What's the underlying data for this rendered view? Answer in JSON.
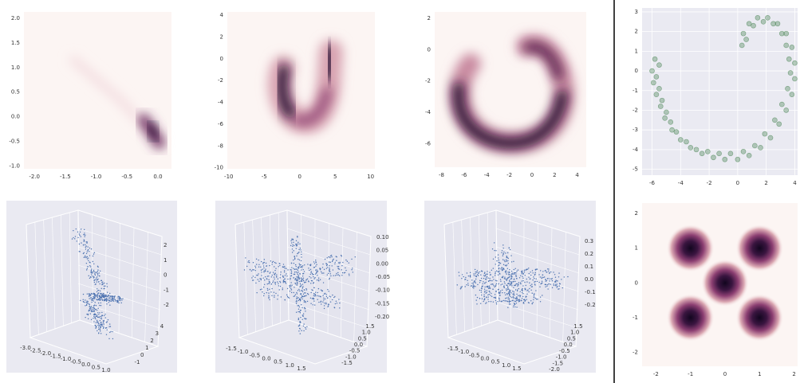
{
  "chart_data": [
    {
      "type": "density",
      "xlim": [
        -2.17,
        0.22
      ],
      "ylim": [
        -1.06,
        2.13
      ],
      "xticks": [
        {
          "value": -2,
          "label": "-2.0"
        },
        -1.5,
        {
          "value": -1,
          "label": "-1.0"
        },
        -0.5,
        {
          "value": 0,
          "label": "0.0"
        }
      ],
      "yticks": [
        {
          "value": -1,
          "label": "-1.0"
        },
        -0.5,
        {
          "value": 0,
          "label": "0.0"
        },
        0.5,
        {
          "value": 1,
          "label": "1.0"
        },
        1.5,
        {
          "value": 2,
          "label": "2.0"
        }
      ]
    },
    {
      "type": "density",
      "xlim": [
        -10.2,
        10.6
      ],
      "ylim": [
        -10.1,
        4.3
      ],
      "xticks": [
        -10,
        -5,
        0,
        5,
        10
      ],
      "yticks": [
        -10,
        -8,
        -6,
        -4,
        -2,
        0,
        2,
        4
      ]
    },
    {
      "type": "density",
      "xlim": [
        -8.6,
        4.8
      ],
      "ylim": [
        -7.5,
        2.4
      ],
      "xticks": [
        -8,
        -6,
        -4,
        -2,
        0,
        2,
        4
      ],
      "yticks": [
        -6,
        -4,
        -2,
        0,
        2
      ]
    },
    {
      "type": "scatter",
      "xlim": [
        -6.7,
        4.2
      ],
      "ylim": [
        -5.3,
        3.2
      ],
      "grid": true,
      "color": "#3f7d4a",
      "xticks": [
        -6,
        -4,
        -2,
        0,
        2,
        4
      ],
      "yticks": [
        -5,
        -4,
        -3,
        -2,
        -1,
        0,
        1,
        2,
        3
      ],
      "x": [
        -5.8,
        -6,
        -5.9,
        -5.7,
        -5.4,
        -5.1,
        -4.6,
        -4,
        -3.3,
        -2.5,
        -1.7,
        -0.9,
        0,
        0.8,
        1.6,
        2.3,
        2.9,
        3.4,
        3.8,
        4,
        4,
        3.8,
        3.4,
        2.8,
        2.1,
        1.4,
        0.8,
        0.4,
        0.3,
        -5.5,
        -5.7,
        -5.5,
        -5.3,
        -5,
        -4.7,
        -4.3,
        -3.6,
        -2.9,
        -2.1,
        -1.3,
        -0.5,
        0.4,
        1.2,
        1.9,
        2.6,
        3.1,
        3.5,
        3.7,
        3.6,
        3.4,
        3.1,
        2.5,
        1.8,
        1.1,
        0.6
      ],
      "values": [
        0.6,
        0,
        -0.6,
        -1.2,
        -1.8,
        -2.4,
        -3,
        -3.5,
        -3.9,
        -4.2,
        -4.4,
        -4.5,
        -4.5,
        -4.3,
        -3.9,
        -3.4,
        -2.7,
        -2,
        -1.2,
        -0.4,
        0.4,
        1.2,
        1.9,
        2.4,
        2.7,
        2.7,
        2.4,
        1.9,
        1.3,
        0.3,
        -0.3,
        -0.9,
        -1.5,
        -2.1,
        -2.6,
        -3.1,
        -3.6,
        -4,
        -4.1,
        -4.2,
        -4.2,
        -4.1,
        -3.8,
        -3.2,
        -2.5,
        -1.7,
        -0.9,
        -0.1,
        0.6,
        1.3,
        1.9,
        2.4,
        2.5,
        2.3,
        1.6
      ]
    },
    {
      "type": "scatter3d",
      "xticks": [
        {
          "value": -3,
          "label": "-3.0"
        },
        -2.5,
        {
          "value": -2,
          "label": "-2.0"
        },
        -1.5,
        {
          "value": -1,
          "label": "-1.0"
        },
        -0.5,
        {
          "value": 0,
          "label": "0.0"
        },
        0.5,
        {
          "value": 1,
          "label": "1.0"
        }
      ],
      "yticks": [
        -1,
        0,
        1,
        2,
        3,
        4
      ],
      "zticks": [
        -2,
        -1,
        0,
        1,
        2
      ]
    },
    {
      "type": "scatter3d",
      "xticks": [
        -1.5,
        {
          "value": -1,
          "label": "-1.0"
        },
        -0.5,
        {
          "value": 0,
          "label": "0.0"
        },
        0.5,
        {
          "value": 1,
          "label": "1.0"
        },
        1.5
      ],
      "yticks": [
        -1.5,
        {
          "value": -1,
          "label": "-1.0"
        },
        -0.5,
        {
          "value": 0,
          "label": "0.0"
        },
        0.5,
        {
          "value": 1,
          "label": "1.0"
        },
        1.5
      ],
      "zticks": [
        {
          "value": -0.2,
          "label": "-0.20"
        },
        -0.15,
        {
          "value": -0.1,
          "label": "-0.10"
        },
        -0.05,
        {
          "value": 0,
          "label": "0.00"
        },
        0.05,
        {
          "value": 0.1,
          "label": "0.10"
        }
      ]
    },
    {
      "type": "scatter3d",
      "xticks": [
        -1.5,
        {
          "value": -1,
          "label": "-1.0"
        },
        -0.5,
        {
          "value": 0,
          "label": "0.0"
        },
        0.5,
        {
          "value": 1,
          "label": "1.0"
        },
        1.5
      ],
      "yticks": [
        {
          "value": -2,
          "label": "-2.0"
        },
        -1.5,
        {
          "value": -1,
          "label": "-1.0"
        },
        -0.5,
        {
          "value": 0,
          "label": "0.0"
        },
        0.5,
        {
          "value": 1,
          "label": "1.0"
        },
        1.5
      ],
      "zticks": [
        -0.2,
        -0.1,
        {
          "value": 0,
          "label": "0.0"
        },
        0.1,
        0.2,
        0.3
      ]
    },
    {
      "type": "density",
      "xlim": [
        -2.4,
        2.1
      ],
      "ylim": [
        -2.4,
        2.3
      ],
      "xticks": [
        -2,
        -1,
        0,
        1,
        2
      ],
      "yticks": [
        -2,
        -1,
        0,
        1,
        2
      ],
      "x": [
        -1,
        1,
        0,
        -1,
        1
      ],
      "values": [
        1,
        1,
        0,
        -1,
        -1
      ]
    }
  ]
}
